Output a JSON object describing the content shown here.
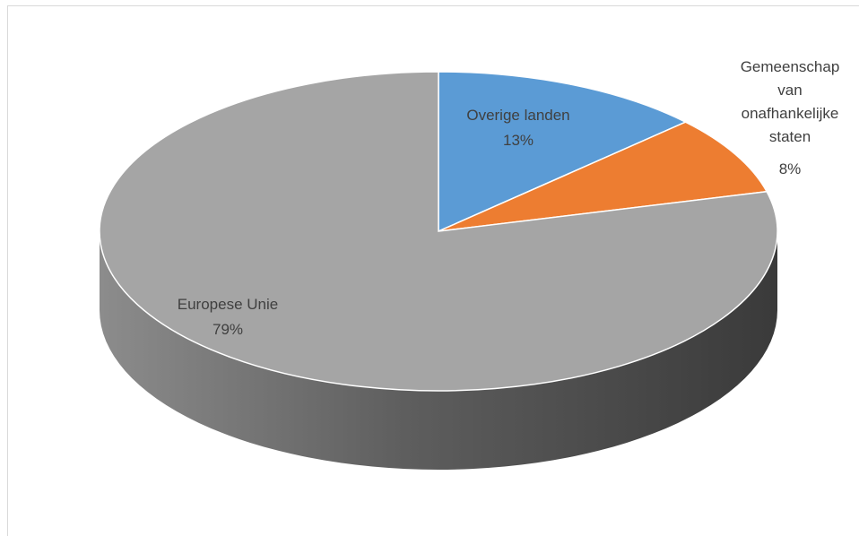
{
  "chart_data": {
    "type": "pie",
    "title": "",
    "three_d": true,
    "slices": [
      {
        "name": "Overige landen",
        "value": 13,
        "label": "13%",
        "color": "#5b9bd5"
      },
      {
        "name": "Gemeenschap van onafhankelijke staten",
        "name_lines": [
          "Gemeenschap",
          "van",
          "onafhankelijke",
          "staten"
        ],
        "value": 8,
        "label": "8%",
        "color": "#ed7d31"
      },
      {
        "name": "Europese Unie",
        "value": 79,
        "label": "79%",
        "color": "#a5a5a5"
      }
    ],
    "legend": "none",
    "data_labels": "category-and-percent"
  }
}
